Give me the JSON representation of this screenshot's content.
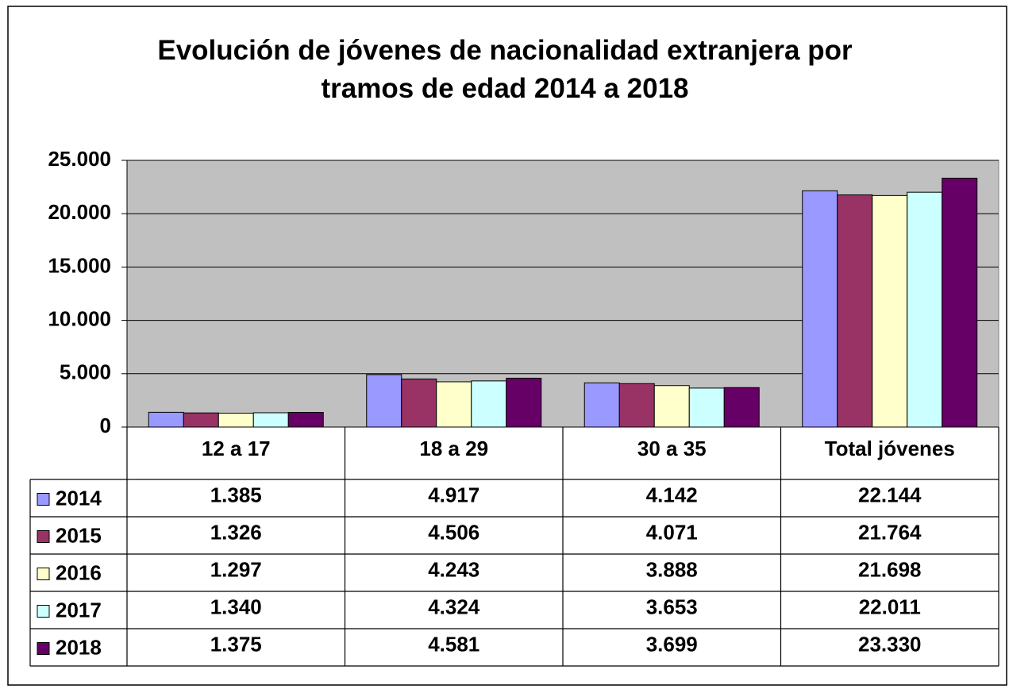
{
  "chart_data": {
    "type": "bar",
    "title": "Evolución de jóvenes de nacionalidad extranjera por tramos de edad 2014 a 2018",
    "categories": [
      "12 a 17",
      "18 a 29",
      "30 a 35",
      "Total jóvenes"
    ],
    "series": [
      {
        "name": "2014",
        "color": "#9999ff",
        "values": [
          1385,
          4917,
          4142,
          22144
        ],
        "value_labels": [
          "1.385",
          "4.917",
          "4.142",
          "22.144"
        ]
      },
      {
        "name": "2015",
        "color": "#993366",
        "values": [
          1326,
          4506,
          4071,
          21764
        ],
        "value_labels": [
          "1.326",
          "4.506",
          "4.071",
          "21.764"
        ]
      },
      {
        "name": "2016",
        "color": "#ffffcc",
        "values": [
          1297,
          4243,
          3888,
          21698
        ],
        "value_labels": [
          "1.297",
          "4.243",
          "3.888",
          "21.698"
        ]
      },
      {
        "name": "2017",
        "color": "#ccffff",
        "values": [
          1340,
          4324,
          3653,
          22011
        ],
        "value_labels": [
          "1.340",
          "4.324",
          "3.653",
          "22.011"
        ]
      },
      {
        "name": "2018",
        "color": "#660066",
        "values": [
          1375,
          4581,
          3699,
          23330
        ],
        "value_labels": [
          "1.375",
          "4.581",
          "3.699",
          "23.330"
        ]
      }
    ],
    "ylim": [
      0,
      25000
    ],
    "yticks": [
      0,
      {
        "value": 5000,
        "label": "5.000"
      },
      {
        "value": 10000,
        "label": "10.000"
      },
      {
        "value": 15000,
        "label": "15.000"
      },
      {
        "value": 20000,
        "label": "20.000"
      },
      {
        "value": 25000,
        "label": "25.000"
      }
    ],
    "grid": true
  }
}
